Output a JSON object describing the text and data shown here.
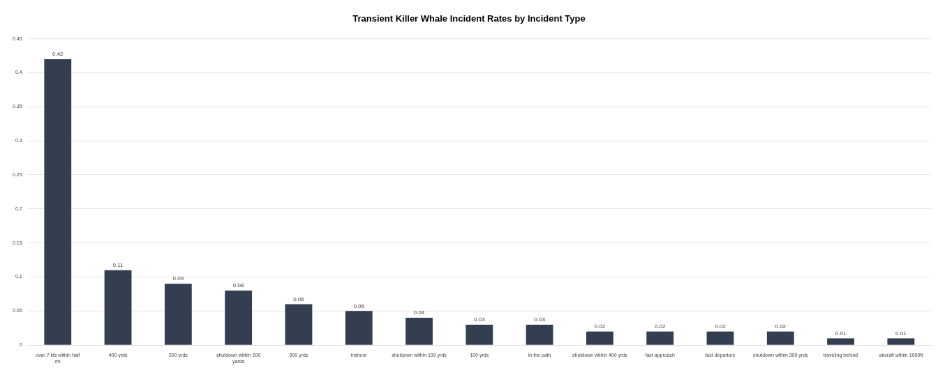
{
  "chart_data": {
    "type": "bar",
    "title": "Transient Killer Whale Incident Rates by Incident Type",
    "categories": [
      "over 7 kts within half mi",
      "400 yrds",
      "200 yrds",
      "shutdown within 200 yards",
      "300 yrds",
      "inshore",
      "shutdown within 100 yrds",
      "100 yrds",
      "in the path",
      "shutdown within 400 yrds",
      "fast approach",
      "fast departure",
      "shutdown within 300 yrds",
      "traveling behind",
      "aircraft within 1000ft"
    ],
    "values": [
      0.42,
      0.11,
      0.09,
      0.08,
      0.06,
      0.05,
      0.04,
      0.03,
      0.03,
      0.02,
      0.02,
      0.02,
      0.02,
      0.01,
      0.01
    ],
    "color": "#333f50",
    "data_labels": true,
    "grid": "y",
    "legend": false,
    "ylim": [
      0,
      0.45
    ],
    "yticks": [
      0,
      0.05,
      0.1,
      0.15,
      0.2,
      0.25,
      0.3,
      0.35,
      0.4,
      0.45
    ]
  }
}
